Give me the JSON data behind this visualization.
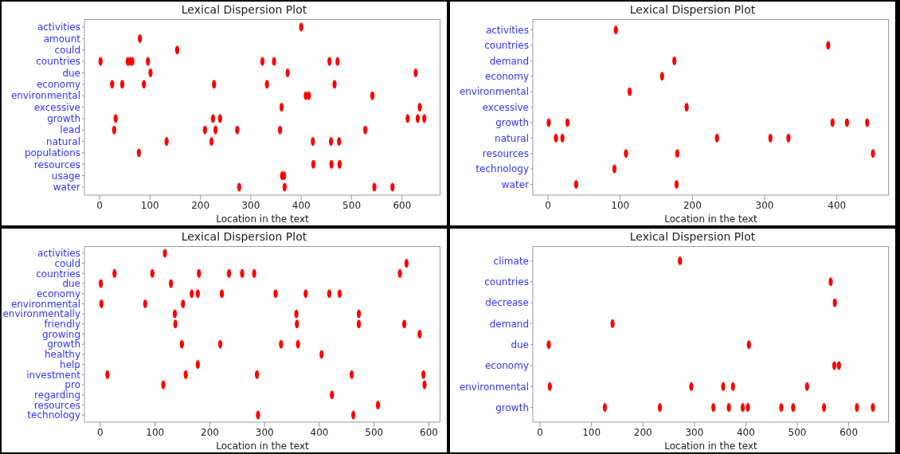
{
  "chart_data": [
    {
      "type": "scatter",
      "orientation": "horizontal",
      "title": "Lexical Dispersion Plot",
      "xlabel": "Location in the text",
      "categories": [
        "activities",
        "amount",
        "could",
        "countries",
        "due",
        "economy",
        "environmental",
        "excessive",
        "growth",
        "lead",
        "natural",
        "populations",
        "resources",
        "usage",
        "water"
      ],
      "xlim": [
        -30,
        676
      ],
      "xticks": [
        0,
        100,
        200,
        300,
        400,
        500,
        600
      ],
      "series": [
        {
          "color": "#ff0000",
          "values": [
            400,
            80,
            154,
            2,
            56,
            61,
            65,
            96,
            323,
            346,
            456,
            472,
            101,
            373,
            627,
            25,
            45,
            88,
            227,
            332,
            466,
            409,
            415,
            541,
            361,
            635,
            32,
            225,
            239,
            611,
            631,
            644,
            29,
            209,
            230,
            273,
            358,
            527,
            133,
            222,
            423,
            459,
            475,
            78,
            424,
            460,
            476,
            362,
            366,
            277,
            367,
            545,
            581
          ],
          "x": [
            "activities",
            "amount",
            "could",
            "countries",
            "countries",
            "countries",
            "countries",
            "countries",
            "countries",
            "countries",
            "countries",
            "countries",
            "due",
            "due",
            "due",
            "economy",
            "economy",
            "economy",
            "economy",
            "economy",
            "economy",
            "environmental",
            "environmental",
            "environmental",
            "excessive",
            "excessive",
            "growth",
            "growth",
            "growth",
            "growth",
            "growth",
            "growth",
            "lead",
            "lead",
            "lead",
            "lead",
            "lead",
            "lead",
            "natural",
            "natural",
            "natural",
            "natural",
            "natural",
            "populations",
            "resources",
            "resources",
            "resources",
            "usage",
            "usage",
            "water",
            "water",
            "water",
            "water"
          ]
        }
      ]
    },
    {
      "type": "scatter",
      "orientation": "horizontal",
      "title": "Lexical Dispersion Plot",
      "xlabel": "Location in the text",
      "categories": [
        "activities",
        "countries",
        "demand",
        "economy",
        "environmental",
        "excessive",
        "growth",
        "natural",
        "resources",
        "technology",
        "water"
      ],
      "xlim": [
        -21,
        472
      ],
      "xticks": [
        0,
        100,
        200,
        300,
        400
      ],
      "series": [
        {
          "color": "#ff0000",
          "values": [
            94,
            388,
            175,
            158,
            113,
            192,
            1,
            27,
            394,
            414,
            442,
            11,
            20,
            234,
            308,
            333,
            108,
            179,
            450,
            92,
            39,
            178
          ],
          "x": [
            "activities",
            "countries",
            "demand",
            "economy",
            "environmental",
            "excessive",
            "growth",
            "growth",
            "growth",
            "growth",
            "growth",
            "natural",
            "natural",
            "natural",
            "natural",
            "natural",
            "resources",
            "resources",
            "resources",
            "technology",
            "water",
            "water"
          ]
        }
      ]
    },
    {
      "type": "scatter",
      "orientation": "horizontal",
      "title": "Lexical Dispersion Plot",
      "xlabel": "Location in the text",
      "categories": [
        "activities",
        "could",
        "countries",
        "due",
        "economy",
        "environmental",
        "environmentally",
        "friendly",
        "growing",
        "growth",
        "healthy",
        "help",
        "investment",
        "pro",
        "regarding",
        "resources",
        "technology"
      ],
      "xlim": [
        -29,
        621
      ],
      "xticks": [
        0,
        100,
        200,
        300,
        400,
        500,
        600
      ],
      "series": [
        {
          "color": "#ff0000",
          "values": [
            118,
            559,
            26,
            95,
            180,
            235,
            259,
            281,
            547,
            1,
            129,
            167,
            178,
            222,
            320,
            375,
            418,
            437,
            2,
            82,
            151,
            136,
            358,
            472,
            137,
            359,
            472,
            555,
            583,
            149,
            219,
            330,
            361,
            404,
            178,
            13,
            156,
            286,
            459,
            590,
            115,
            592,
            423,
            507,
            288,
            462
          ],
          "x": [
            "activities",
            "could",
            "countries",
            "countries",
            "countries",
            "countries",
            "countries",
            "countries",
            "countries",
            "due",
            "due",
            "economy",
            "economy",
            "economy",
            "economy",
            "economy",
            "economy",
            "economy",
            "environmental",
            "environmental",
            "environmental",
            "environmentally",
            "environmentally",
            "environmentally",
            "friendly",
            "friendly",
            "friendly",
            "friendly",
            "growing",
            "growth",
            "growth",
            "growth",
            "growth",
            "healthy",
            "help",
            "investment",
            "investment",
            "investment",
            "investment",
            "investment",
            "pro",
            "pro",
            "regarding",
            "resources",
            "technology",
            "technology"
          ]
        }
      ]
    },
    {
      "type": "scatter",
      "orientation": "horizontal",
      "title": "Lexical Dispersion Plot",
      "xlabel": "Location in the text",
      "categories": [
        "climate",
        "countries",
        "decrease",
        "demand",
        "due",
        "economy",
        "environmental",
        "growth"
      ],
      "xlim": [
        -14,
        678
      ],
      "xticks": [
        0,
        100,
        200,
        300,
        400,
        500,
        600
      ],
      "series": [
        {
          "color": "#ff0000",
          "values": [
            272,
            565,
            573,
            141,
            17,
            406,
            572,
            581,
            19,
            294,
            356,
            375,
            519,
            126,
            233,
            337,
            367,
            394,
            404,
            469,
            492,
            552,
            616,
            647
          ],
          "x": [
            "climate",
            "countries",
            "decrease",
            "demand",
            "due",
            "due",
            "economy",
            "economy",
            "environmental",
            "environmental",
            "environmental",
            "environmental",
            "environmental",
            "growth",
            "growth",
            "growth",
            "growth",
            "growth",
            "growth",
            "growth",
            "growth",
            "growth",
            "growth",
            "growth"
          ]
        }
      ]
    }
  ]
}
